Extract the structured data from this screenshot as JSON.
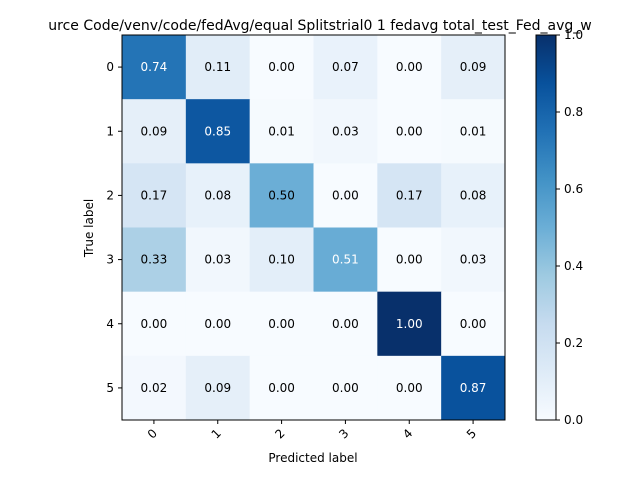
{
  "chart_data": {
    "type": "heatmap",
    "title": "urce Code/venv/code/fedAvg/equal Splitstrial0 1 fedavg total_test_Fed_avg_w",
    "xlabel": "Predicted label",
    "ylabel": "True label",
    "x_categories": [
      "0",
      "1",
      "2",
      "3",
      "4",
      "5"
    ],
    "y_categories": [
      "0",
      "1",
      "2",
      "3",
      "4",
      "5"
    ],
    "values": [
      [
        0.74,
        0.11,
        0.0,
        0.07,
        0.0,
        0.09
      ],
      [
        0.09,
        0.85,
        0.01,
        0.03,
        0.0,
        0.01
      ],
      [
        0.17,
        0.08,
        0.5,
        0.0,
        0.17,
        0.08
      ],
      [
        0.33,
        0.03,
        0.1,
        0.51,
        0.0,
        0.03
      ],
      [
        0.0,
        0.0,
        0.0,
        0.0,
        1.0,
        0.0
      ],
      [
        0.02,
        0.09,
        0.0,
        0.0,
        0.0,
        0.87
      ]
    ],
    "value_labels": [
      [
        "0.74",
        "0.11",
        "0.00",
        "0.07",
        "0.00",
        "0.09"
      ],
      [
        "0.09",
        "0.85",
        "0.01",
        "0.03",
        "0.00",
        "0.01"
      ],
      [
        "0.17",
        "0.08",
        "0.50",
        "0.00",
        "0.17",
        "0.08"
      ],
      [
        "0.33",
        "0.03",
        "0.10",
        "0.51",
        "0.00",
        "0.03"
      ],
      [
        "0.00",
        "0.00",
        "0.00",
        "0.00",
        "1.00",
        "0.00"
      ],
      [
        "0.02",
        "0.09",
        "0.00",
        "0.00",
        "0.00",
        "0.87"
      ]
    ],
    "colormap": "Blues",
    "colorbar": {
      "range": [
        0.0,
        1.0
      ],
      "ticks": [
        0.0,
        0.2,
        0.4,
        0.6,
        0.8,
        1.0
      ],
      "tick_labels": [
        "0.0",
        "0.2",
        "0.4",
        "0.6",
        "0.8",
        "1.0"
      ]
    },
    "x_tick_rotation": 45,
    "grid": false
  }
}
